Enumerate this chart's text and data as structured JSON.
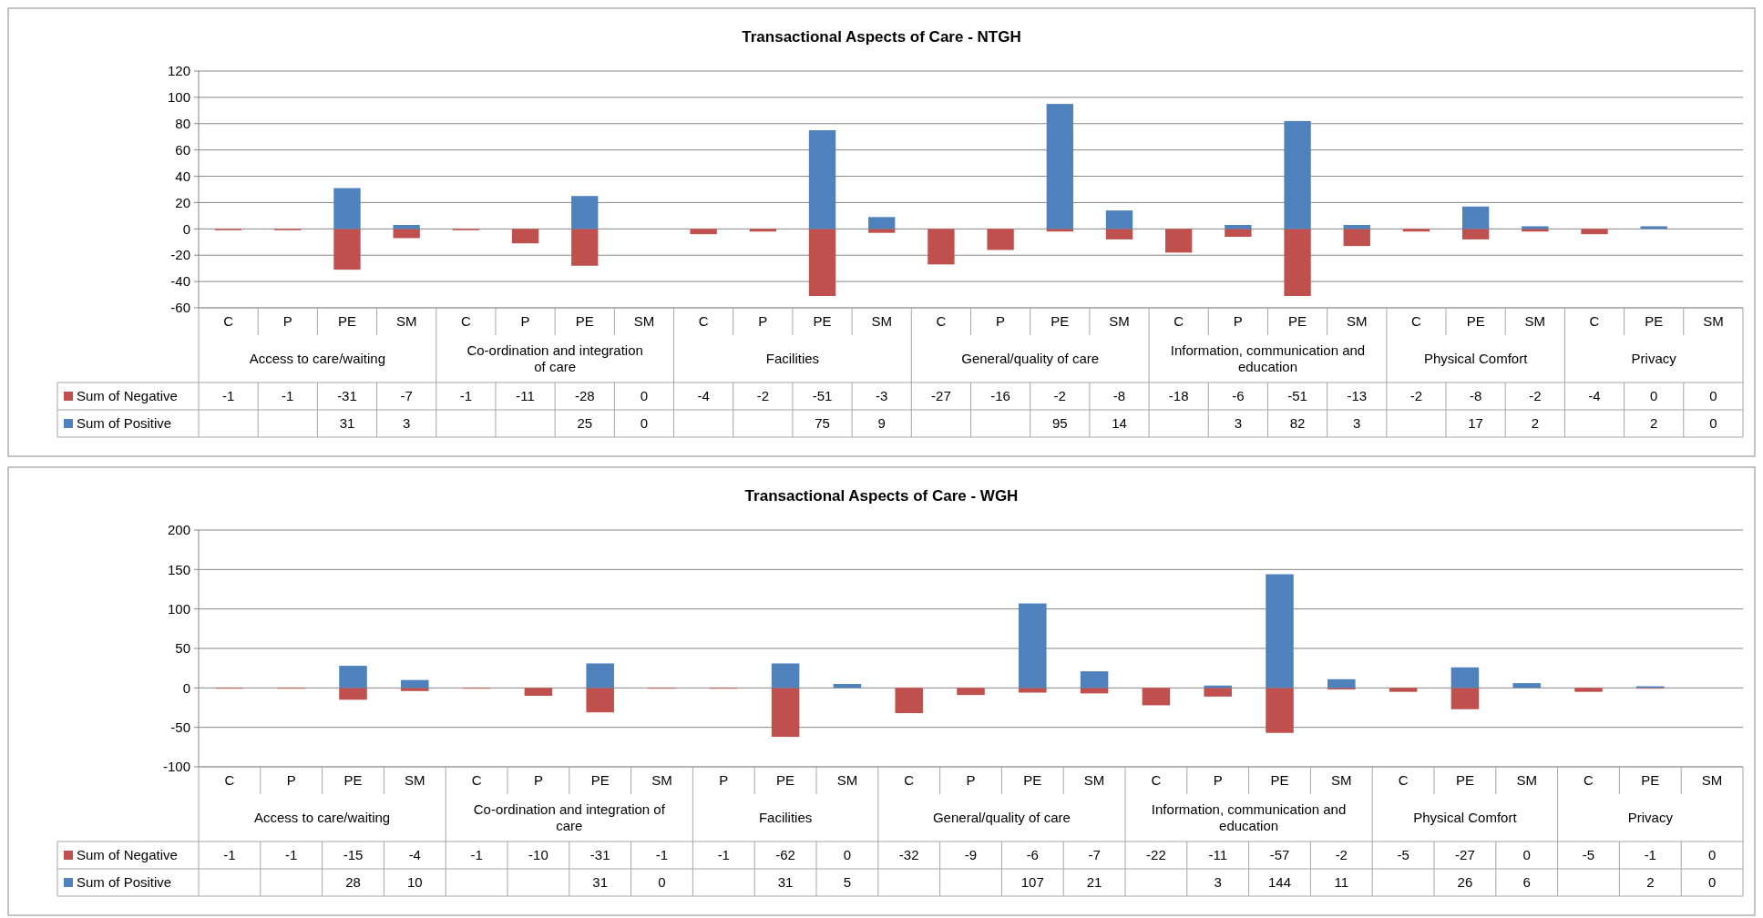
{
  "chart_data": [
    {
      "type": "bar",
      "title": "Transactional Aspects of Care - NTGH",
      "stacked": true,
      "grid": "y",
      "legend": "bottom left",
      "data_labels": true,
      "categories": [
        "C",
        "P",
        "PE",
        "SM",
        "C",
        "P",
        "PE",
        "SM",
        "C",
        "P",
        "PE",
        "SM",
        "C",
        "P",
        "PE",
        "SM",
        "C",
        "P",
        "PE",
        "SM",
        "C",
        "PE",
        "SM",
        "C",
        "PE",
        "SM"
      ],
      "annotations": [
        "Access to care/waiting",
        "Co-ordination and integration of care",
        "Facilities",
        "General/quality of care",
        "Information, communication and education",
        "Physical Comfort",
        "Privacy"
      ],
      "ylim": [
        -60,
        120
      ],
      "yticks": [
        -60,
        -40,
        -20,
        0,
        20,
        40,
        60,
        80,
        100,
        120
      ],
      "series": [
        {
          "name": "Sum of Negative",
          "color": "#c0504d",
          "values": [
            -1,
            -1,
            -31,
            -7,
            -1,
            -11,
            -28,
            0,
            -4,
            -2,
            -51,
            -3,
            -27,
            -16,
            -2,
            -8,
            -18,
            -6,
            -51,
            -13,
            -2,
            -8,
            -2,
            -4,
            0,
            0
          ]
        },
        {
          "name": "Sum of Positive",
          "color": "#4f81bd",
          "values": [
            null,
            null,
            31,
            3,
            null,
            null,
            25,
            0,
            null,
            null,
            75,
            9,
            null,
            null,
            95,
            14,
            null,
            3,
            82,
            3,
            null,
            17,
            2,
            null,
            2,
            0
          ]
        }
      ]
    },
    {
      "type": "bar",
      "title": "Transactional Aspects of Care - WGH",
      "stacked": true,
      "grid": "y",
      "legend": "bottom left",
      "data_labels": true,
      "categories": [
        "C",
        "P",
        "PE",
        "SM",
        "C",
        "P",
        "PE",
        "SM",
        "P",
        "PE",
        "SM",
        "C",
        "P",
        "PE",
        "SM",
        "C",
        "P",
        "PE",
        "SM",
        "C",
        "PE",
        "SM",
        "C",
        "PE",
        "SM"
      ],
      "annotations": [
        "Access to care/waiting",
        "Co-ordination and integration of care",
        "Facilities",
        "General/quality of care",
        "Information, communication and education",
        "Physical Comfort",
        "Privacy"
      ],
      "ylim": [
        -100,
        200
      ],
      "yticks": [
        -100,
        -50,
        0,
        50,
        100,
        150,
        200
      ],
      "series": [
        {
          "name": "Sum of Negative",
          "color": "#c0504d",
          "values": [
            -1,
            -1,
            -15,
            -4,
            -1,
            -10,
            -31,
            -1,
            -1,
            -62,
            0,
            -32,
            -9,
            -6,
            -7,
            -22,
            -11,
            -57,
            -2,
            -5,
            -27,
            0,
            -5,
            -1,
            0
          ]
        },
        {
          "name": "Sum of Positive",
          "color": "#4f81bd",
          "values": [
            null,
            null,
            28,
            10,
            null,
            null,
            31,
            0,
            null,
            31,
            5,
            null,
            null,
            107,
            21,
            null,
            3,
            144,
            11,
            null,
            26,
            6,
            null,
            2,
            0
          ]
        }
      ]
    }
  ]
}
